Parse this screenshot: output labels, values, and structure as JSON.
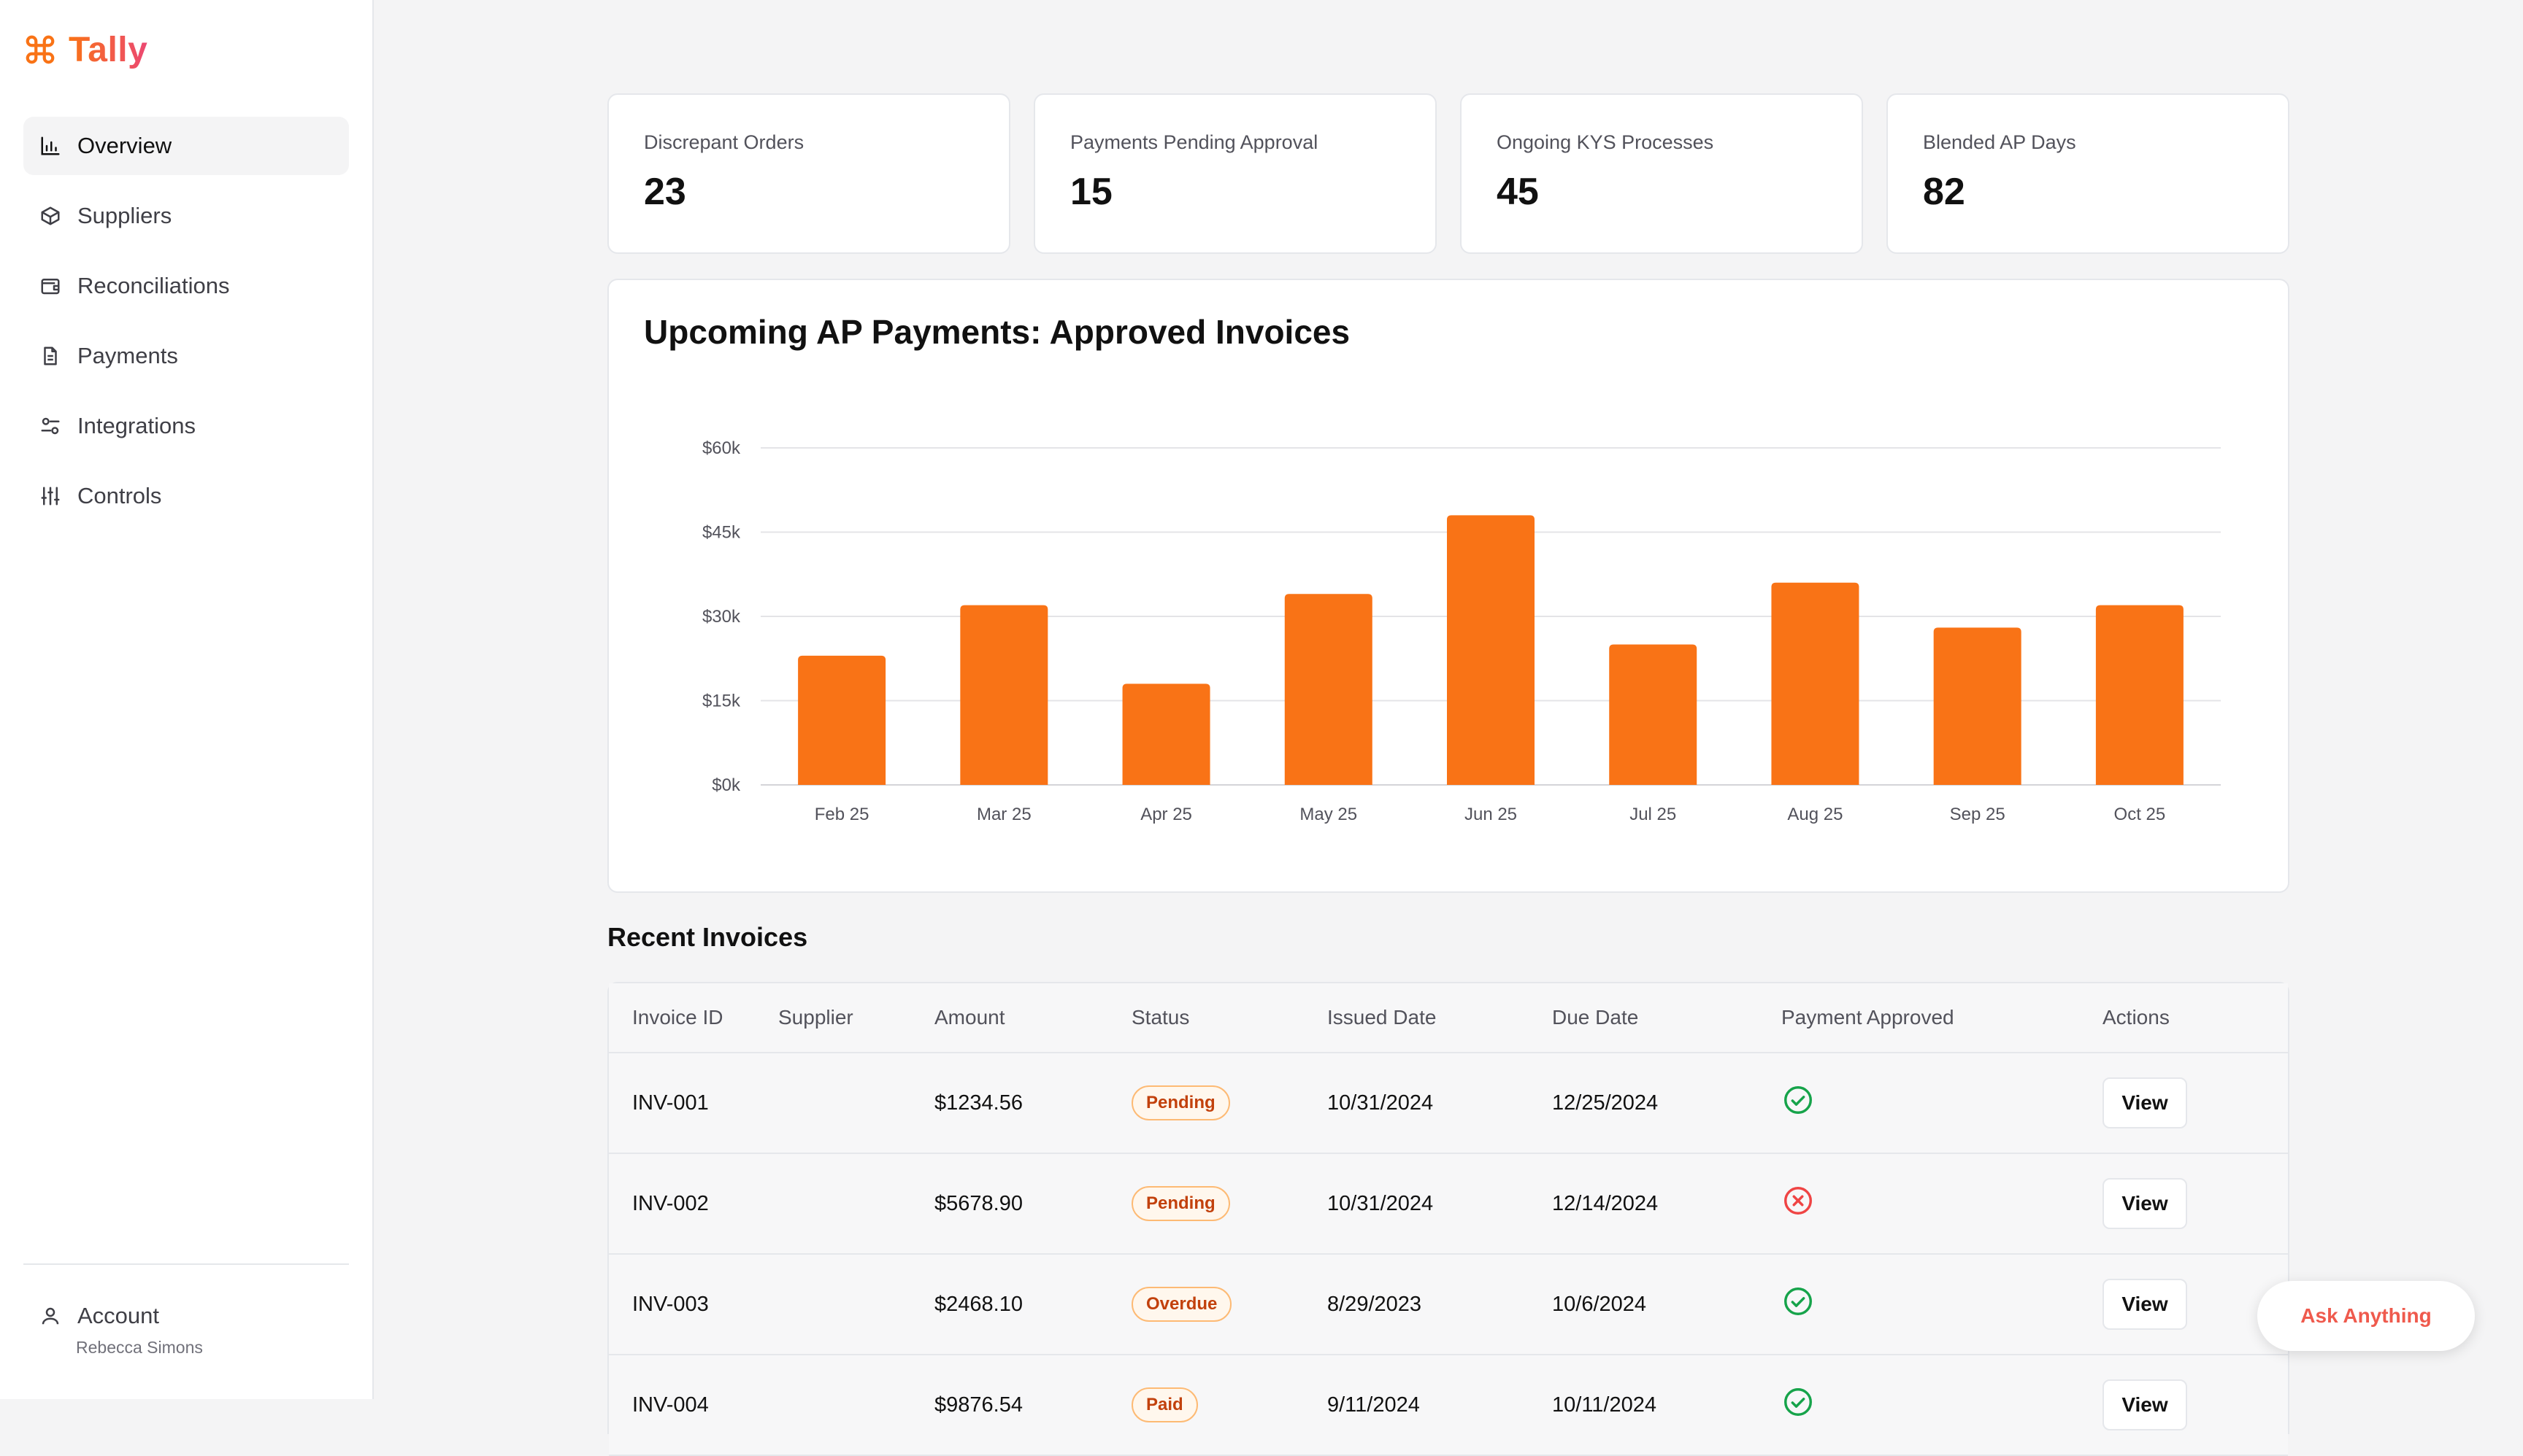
{
  "app": {
    "name": "Tally",
    "logo_icon": "command-icon"
  },
  "sidebar": {
    "items": [
      {
        "label": "Overview",
        "icon": "bar-chart-icon",
        "active": true
      },
      {
        "label": "Suppliers",
        "icon": "box-icon",
        "active": false
      },
      {
        "label": "Reconciliations",
        "icon": "wallet-icon",
        "active": false
      },
      {
        "label": "Payments",
        "icon": "document-icon",
        "active": false
      },
      {
        "label": "Integrations",
        "icon": "toggles-icon",
        "active": false
      },
      {
        "label": "Controls",
        "icon": "sliders-icon",
        "active": false
      }
    ],
    "account": {
      "label": "Account",
      "user": "Rebecca Simons",
      "icon": "user-icon"
    }
  },
  "stats": [
    {
      "label": "Discrepant Orders",
      "value": "23"
    },
    {
      "label": "Payments Pending Approval",
      "value": "15"
    },
    {
      "label": "Ongoing KYS Processes",
      "value": "45"
    },
    {
      "label": "Blended AP Days",
      "value": "82"
    }
  ],
  "chart_data": {
    "type": "bar",
    "title": "Upcoming AP Payments: Approved Invoices",
    "categories": [
      "Feb 25",
      "Mar 25",
      "Apr 25",
      "May 25",
      "Jun 25",
      "Jul 25",
      "Aug 25",
      "Sep 25",
      "Oct 25"
    ],
    "values": [
      23000,
      32000,
      18000,
      34000,
      48000,
      25000,
      36000,
      28000,
      32000
    ],
    "ylim": [
      0,
      60000
    ],
    "yticks": [
      0,
      15000,
      30000,
      45000,
      60000
    ],
    "ytick_labels": [
      "$0k",
      "$15k",
      "$30k",
      "$45k",
      "$60k"
    ],
    "grid": true,
    "bar_color": "#f97316",
    "xlabel": "",
    "ylabel": ""
  },
  "invoices": {
    "title": "Recent Invoices",
    "columns": [
      "Invoice ID",
      "Supplier",
      "Amount",
      "Status",
      "Issued Date",
      "Due Date",
      "Payment Approved",
      "Actions"
    ],
    "rows": [
      {
        "id": "INV-001",
        "supplier": "",
        "amount": "$1234.56",
        "status": "Pending",
        "issued": "10/31/2024",
        "due": "12/25/2024",
        "approved": true,
        "action": "View"
      },
      {
        "id": "INV-002",
        "supplier": "",
        "amount": "$5678.90",
        "status": "Pending",
        "issued": "10/31/2024",
        "due": "12/14/2024",
        "approved": false,
        "action": "View"
      },
      {
        "id": "INV-003",
        "supplier": "",
        "amount": "$2468.10",
        "status": "Overdue",
        "issued": "8/29/2023",
        "due": "10/6/2024",
        "approved": true,
        "action": "View"
      },
      {
        "id": "INV-004",
        "supplier": "",
        "amount": "$9876.54",
        "status": "Paid",
        "issued": "9/11/2024",
        "due": "10/11/2024",
        "approved": true,
        "action": "View"
      }
    ]
  },
  "assistant": {
    "label": "Ask Anything"
  },
  "colors": {
    "accent": "#f97316",
    "accent2": "#ec4872",
    "success": "#16a34a",
    "danger": "#ef4444"
  }
}
